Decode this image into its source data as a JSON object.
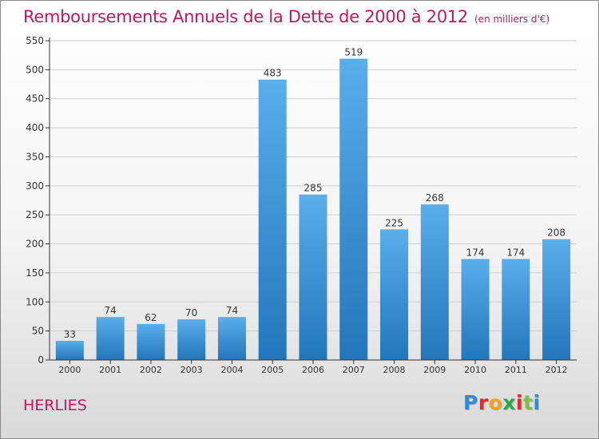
{
  "title": "Remboursements Annuels de la Dette de 2000 à 2012",
  "subtitle": "(en milliers d'€)",
  "town": "HERLIES",
  "logo": {
    "letters": [
      "P",
      "r",
      "o",
      "x",
      "i",
      "t",
      "i"
    ],
    "colors": [
      "#2e8bd8",
      "#e8262c",
      "#f6a21a",
      "#2aa84a",
      "#e8262c",
      "#7cc242",
      "#2e8bd8"
    ]
  },
  "colors": {
    "bar_light": "#5aaeea",
    "bar_dark": "#2276bb",
    "grid": "#cfcfcf",
    "axis": "#333333",
    "text": "#333333",
    "title": "#c2185b"
  },
  "chart_data": {
    "type": "bar",
    "title": "Remboursements Annuels de la Dette de 2000 à 2012",
    "subtitle": "(en milliers d'€)",
    "categories": [
      "2000",
      "2001",
      "2002",
      "2003",
      "2004",
      "2005",
      "2006",
      "2007",
      "2008",
      "2009",
      "2010",
      "2011",
      "2012"
    ],
    "values": [
      33,
      74,
      62,
      70,
      74,
      483,
      285,
      519,
      225,
      268,
      174,
      174,
      208
    ],
    "ylim": [
      0,
      550
    ],
    "yticks": [
      0,
      50,
      100,
      150,
      200,
      250,
      300,
      350,
      400,
      450,
      500,
      550
    ],
    "grid": true,
    "legend": "none",
    "xlabel": "",
    "ylabel": ""
  }
}
